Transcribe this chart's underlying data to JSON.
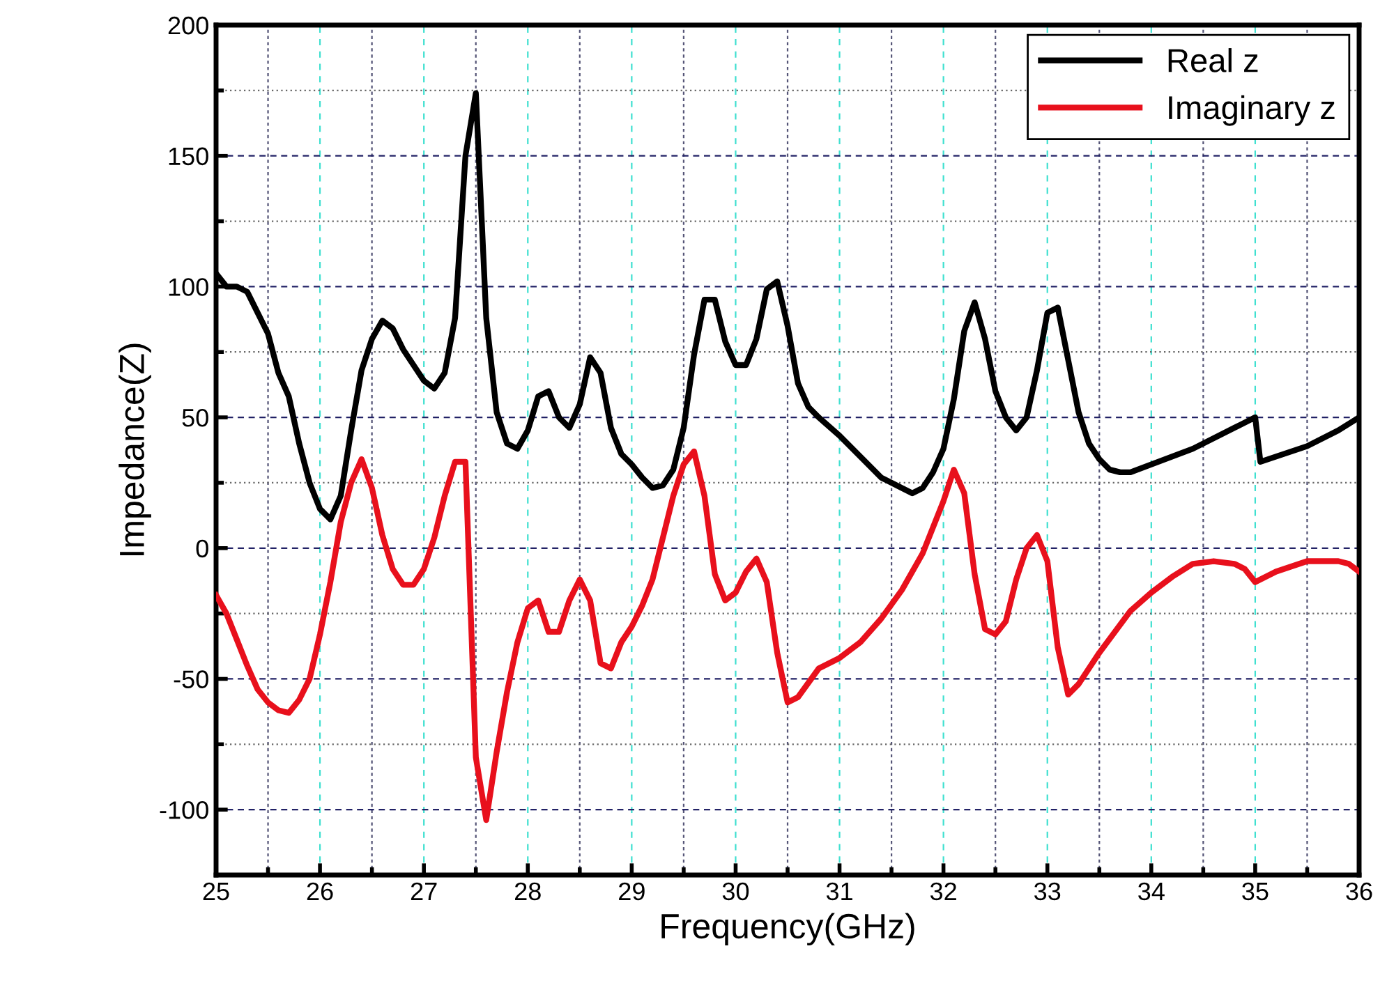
{
  "chart_data": {
    "type": "line",
    "xlabel": "Frequency(GHz)",
    "ylabel": "Impedance(Z)",
    "xlim": [
      25,
      36
    ],
    "ylim": [
      -125,
      200
    ],
    "xticks": [
      25,
      26,
      27,
      28,
      29,
      30,
      31,
      32,
      33,
      34,
      35,
      36
    ],
    "yticks": [
      -100,
      -50,
      0,
      50,
      100,
      150,
      200
    ],
    "grid": true,
    "legend": "top right",
    "line_style": "solid",
    "marker": "none",
    "series": [
      {
        "name": "Real z",
        "color": "#000000",
        "x": [
          25.0,
          25.1,
          25.2,
          25.3,
          25.4,
          25.5,
          25.6,
          25.7,
          25.8,
          25.9,
          26.0,
          26.1,
          26.2,
          26.3,
          26.4,
          26.5,
          26.6,
          26.7,
          26.8,
          26.9,
          27.0,
          27.1,
          27.2,
          27.3,
          27.4,
          27.5,
          27.6,
          27.7,
          27.8,
          27.9,
          28.0,
          28.1,
          28.2,
          28.3,
          28.4,
          28.5,
          28.6,
          28.7,
          28.8,
          28.9,
          29.0,
          29.1,
          29.2,
          29.3,
          29.4,
          29.5,
          29.6,
          29.7,
          29.8,
          29.9,
          30.0,
          30.1,
          30.2,
          30.3,
          30.4,
          30.5,
          30.6,
          30.7,
          30.8,
          31.0,
          31.2,
          31.4,
          31.6,
          31.7,
          31.8,
          31.9,
          32.0,
          32.1,
          32.2,
          32.3,
          32.4,
          32.5,
          32.6,
          32.7,
          32.8,
          32.9,
          33.0,
          33.1,
          33.2,
          33.3,
          33.4,
          33.5,
          33.6,
          33.7,
          33.8,
          34.0,
          34.4,
          34.8,
          35.0,
          35.05,
          35.2,
          35.5,
          35.8,
          36.0
        ],
        "values": [
          105,
          100,
          100,
          98,
          90,
          82,
          67,
          58,
          40,
          25,
          15,
          11,
          20,
          45,
          68,
          80,
          87,
          84,
          76,
          70,
          64,
          61,
          67,
          88,
          150,
          174,
          88,
          52,
          40,
          38,
          45,
          58,
          60,
          50,
          46,
          55,
          73,
          67,
          46,
          36,
          32,
          27,
          23,
          24,
          30,
          46,
          74,
          95,
          95,
          79,
          70,
          70,
          80,
          99,
          102,
          85,
          63,
          54,
          50,
          43,
          35,
          27,
          23,
          21,
          23,
          29,
          38,
          57,
          83,
          94,
          80,
          60,
          50,
          45,
          50,
          68,
          90,
          92,
          72,
          52,
          40,
          34,
          30,
          29,
          29,
          32,
          38,
          46,
          50,
          33,
          35,
          39,
          45,
          50
        ]
      },
      {
        "name": "Imaginary z",
        "color": "#e8101c",
        "x": [
          25.0,
          25.1,
          25.2,
          25.3,
          25.4,
          25.5,
          25.6,
          25.7,
          25.8,
          25.9,
          26.0,
          26.1,
          26.2,
          26.3,
          26.4,
          26.5,
          26.6,
          26.7,
          26.8,
          26.9,
          27.0,
          27.1,
          27.2,
          27.3,
          27.4,
          27.5,
          27.6,
          27.7,
          27.8,
          27.9,
          28.0,
          28.1,
          28.2,
          28.3,
          28.4,
          28.5,
          28.6,
          28.7,
          28.8,
          28.9,
          29.0,
          29.1,
          29.2,
          29.3,
          29.4,
          29.5,
          29.6,
          29.7,
          29.8,
          29.9,
          30.0,
          30.1,
          30.2,
          30.3,
          30.4,
          30.5,
          30.6,
          30.8,
          31.0,
          31.2,
          31.4,
          31.6,
          31.8,
          32.0,
          32.1,
          32.2,
          32.3,
          32.4,
          32.5,
          32.6,
          32.7,
          32.8,
          32.9,
          33.0,
          33.1,
          33.2,
          33.3,
          33.5,
          33.8,
          34.0,
          34.2,
          34.4,
          34.6,
          34.8,
          34.9,
          35.0,
          35.2,
          35.5,
          35.8,
          35.9,
          36.0
        ],
        "values": [
          -18,
          -25,
          -35,
          -45,
          -54,
          -59,
          -62,
          -63,
          -58,
          -50,
          -33,
          -13,
          10,
          25,
          34,
          23,
          5,
          -8,
          -14,
          -14,
          -8,
          4,
          20,
          33,
          33,
          -80,
          -104,
          -78,
          -55,
          -36,
          -23,
          -20,
          -32,
          -32,
          -20,
          -12,
          -20,
          -44,
          -46,
          -36,
          -30,
          -22,
          -12,
          4,
          20,
          32,
          37,
          20,
          -10,
          -20,
          -17,
          -9,
          -4,
          -13,
          -40,
          -59,
          -57,
          -46,
          -42,
          -36,
          -27,
          -16,
          -2,
          18,
          30,
          21,
          -10,
          -31,
          -33,
          -28,
          -12,
          0,
          5,
          -5,
          -38,
          -56,
          -52,
          -40,
          -24,
          -17,
          -11,
          -6,
          -5,
          -6,
          -8,
          -13,
          -9,
          -5,
          -5,
          -6,
          -9
        ]
      }
    ]
  }
}
